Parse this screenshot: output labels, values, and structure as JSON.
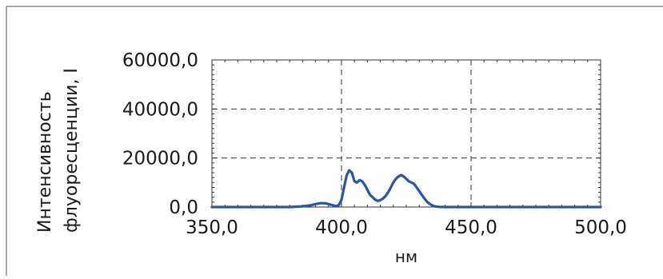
{
  "chart_data": {
    "type": "line",
    "title": "",
    "ylabel_lines": [
      "Интенсивность",
      "флуоресценции, I"
    ],
    "xlabel": "нм",
    "xlim": [
      350,
      500
    ],
    "ylim": [
      0,
      60000
    ],
    "xticks": [
      350,
      400,
      450,
      500
    ],
    "yticks": [
      0,
      20000,
      40000,
      60000
    ],
    "xtick_labels": [
      "350,0",
      "400,0",
      "450,0",
      "500,0"
    ],
    "ytick_labels": [
      "0,0",
      "20000,0",
      "40000,0",
      "60000,0"
    ],
    "grid": "dashed at 400 and 450 (x), 20000 and 40000 (y)",
    "line_color": "#2a56a5",
    "series": [
      {
        "x": [
          350,
          380,
          385,
          388,
          390,
          392,
          394,
          396,
          398,
          399,
          400,
          401,
          402,
          403,
          404,
          405,
          406,
          407,
          408,
          409,
          410,
          411,
          412,
          413,
          414,
          415,
          416,
          417,
          418,
          419,
          420,
          421,
          422,
          423,
          424,
          425,
          426,
          427,
          428,
          429,
          430,
          431,
          432,
          433,
          434,
          435,
          436,
          437,
          438,
          440,
          442,
          445,
          450,
          500
        ],
        "y": [
          0,
          0,
          300,
          700,
          1200,
          1600,
          1500,
          900,
          400,
          800,
          3000,
          8000,
          13000,
          15000,
          14000,
          10500,
          10000,
          11000,
          10500,
          9000,
          7000,
          5000,
          4000,
          3000,
          2500,
          2800,
          3500,
          4500,
          6000,
          8000,
          10000,
          11500,
          12500,
          13000,
          12500,
          11500,
          10500,
          10000,
          9500,
          8000,
          6500,
          5000,
          3500,
          2200,
          1300,
          700,
          300,
          150,
          50,
          0,
          0,
          0,
          0,
          0
        ]
      }
    ]
  }
}
